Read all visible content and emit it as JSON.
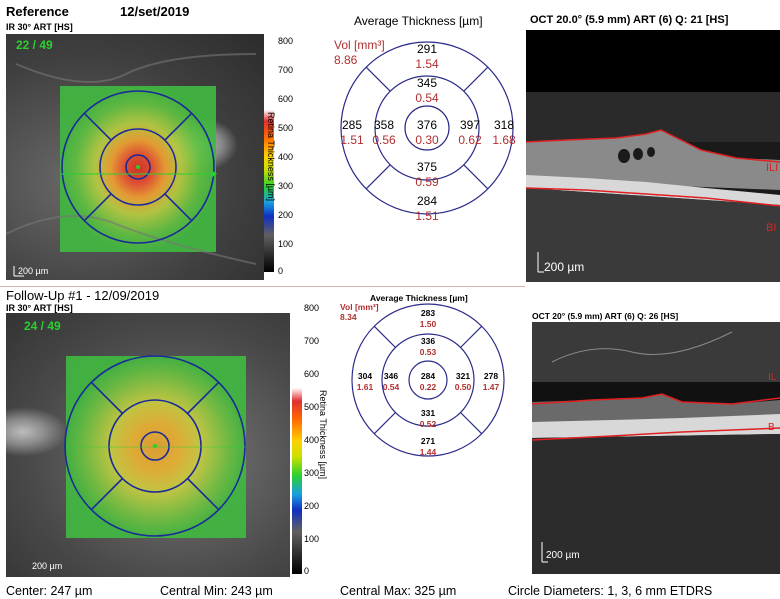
{
  "top": {
    "title": "Reference",
    "date": "12/set/2019",
    "ir_label": "IR 30° ART [HS]",
    "frame_counter": "22 / 49",
    "scale_label": "200 µm",
    "colorbar_ticks": [
      "800",
      "700",
      "600",
      "500",
      "400",
      "300",
      "200",
      "100",
      "0"
    ],
    "colorbar_title": "Retina Thickness [µm]",
    "etdrs_title": "Average Thickness [µm]",
    "vol_label": "Vol [mm³]",
    "vol_value": "8.86",
    "sectors": {
      "outer_sup": {
        "t": "291",
        "v": "1.54"
      },
      "inner_sup": {
        "t": "345",
        "v": "0.54"
      },
      "outer_temp": {
        "t": "285",
        "v": "1.51"
      },
      "inner_temp": {
        "t": "358",
        "v": "0.56"
      },
      "center": {
        "t": "376",
        "v": "0.30"
      },
      "inner_nas": {
        "t": "397",
        "v": "0.62"
      },
      "outer_nas": {
        "t": "318",
        "v": "1.68"
      },
      "inner_inf": {
        "t": "375",
        "v": "0.59"
      },
      "outer_inf": {
        "t": "284",
        "v": "1.51"
      }
    },
    "oct_title": "OCT 20.0° (5.9 mm) ART (6) Q: 21 [HS]",
    "oct_scale": "200 µm",
    "oct_ilm": "ILI",
    "oct_rpe": "BI"
  },
  "bottom": {
    "title": "Follow-Up #1 - 12/09/2019",
    "ir_label": "IR 30° ART [HS]",
    "frame_counter": "24 / 49",
    "scale_label": "200 µm",
    "colorbar_ticks": [
      "800",
      "700",
      "600",
      "500",
      "400",
      "300",
      "200",
      "100",
      "0"
    ],
    "colorbar_title": "Retina Thickness [µm]",
    "etdrs_title": "Average Thickness [µm]",
    "vol_label": "Vol [mm³]",
    "vol_value": "8.34",
    "sectors": {
      "outer_sup": {
        "t": "283",
        "v": "1.50"
      },
      "inner_sup": {
        "t": "336",
        "v": "0.53"
      },
      "outer_temp": {
        "t": "304",
        "v": "1.61"
      },
      "inner_temp": {
        "t": "346",
        "v": "0.54"
      },
      "center": {
        "t": "284",
        "v": "0.22"
      },
      "inner_nas": {
        "t": "321",
        "v": "0.50"
      },
      "outer_nas": {
        "t": "278",
        "v": "1.47"
      },
      "inner_inf": {
        "t": "331",
        "v": "0.52"
      },
      "outer_inf": {
        "t": "271",
        "v": "1.44"
      }
    },
    "oct_title": "OCT 20° (5.9 mm) ART (6) Q: 26 [HS]",
    "oct_scale": "200 µm",
    "oct_ilm": "IL",
    "oct_rpe": "B"
  },
  "footer": {
    "center": "Center: 247 µm",
    "central_min": "Central Min: 243 µm",
    "central_max": "Central Max: 325 µm",
    "circle_diameters": "Circle Diameters:  1, 3, 6 mm ETDRS"
  },
  "colors": {
    "etdrs_line": "#2b2b8a",
    "vol_red": "#b03030",
    "oct_line_red": "#e02020",
    "counter_green": "#2ad030"
  }
}
